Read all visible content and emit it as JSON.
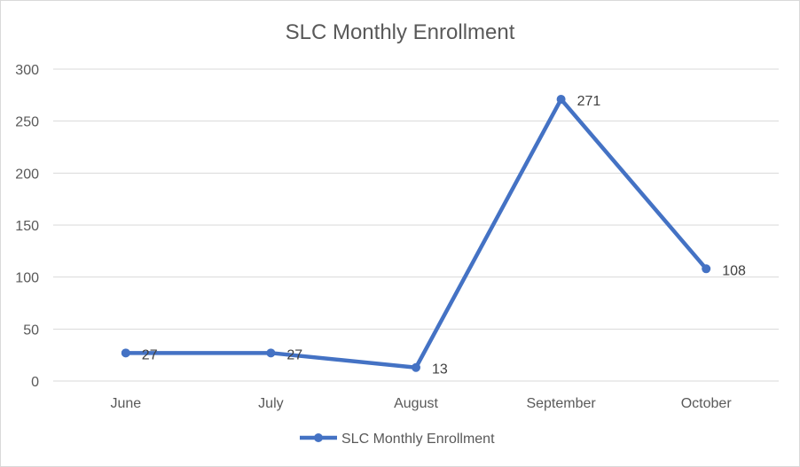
{
  "chart_data": {
    "type": "line",
    "title": "SLC Monthly Enrollment",
    "xlabel": "",
    "ylabel": "",
    "categories": [
      "June",
      "July",
      "August",
      "September",
      "October"
    ],
    "series": [
      {
        "name": "SLC Monthly Enrollment",
        "values": [
          27,
          27,
          13,
          271,
          108
        ],
        "color": "#4472C4"
      }
    ],
    "ylim": [
      0,
      300
    ],
    "yticks": [
      0,
      50,
      100,
      150,
      200,
      250,
      300
    ],
    "grid": true,
    "legend_position": "bottom",
    "data_labels": true
  }
}
